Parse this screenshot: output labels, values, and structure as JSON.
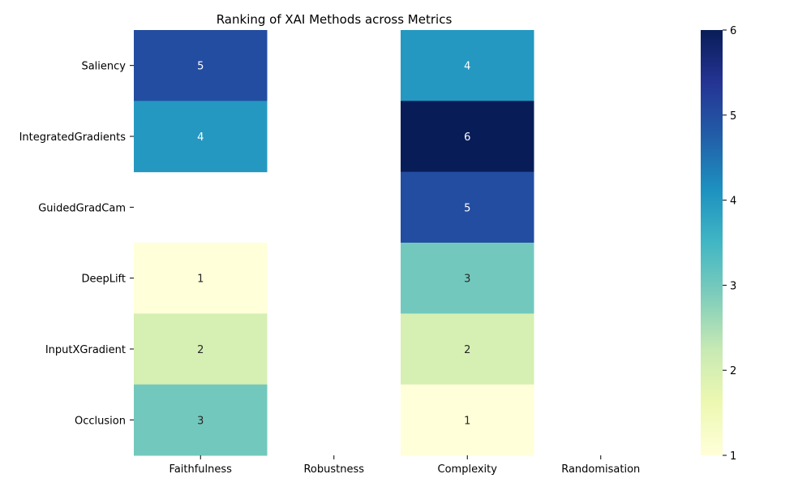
{
  "chart_data": {
    "type": "heatmap",
    "title": "Ranking of XAI Methods across Metrics",
    "rows": [
      "Saliency",
      "IntegratedGradients",
      "GuidedGradCam",
      "DeepLift",
      "InputXGradient",
      "Occlusion"
    ],
    "columns": [
      "Faithfulness",
      "Robustness",
      "Complexity",
      "Randomisation"
    ],
    "values": [
      [
        5,
        null,
        4,
        null
      ],
      [
        4,
        null,
        6,
        null
      ],
      [
        null,
        null,
        5,
        null
      ],
      [
        1,
        null,
        3,
        null
      ],
      [
        2,
        null,
        2,
        null
      ],
      [
        3,
        null,
        1,
        null
      ]
    ],
    "colormap": "YlGnBu",
    "colorbar": {
      "min": 1,
      "max": 6,
      "ticks": [
        "1",
        "2",
        "3",
        "4",
        "5",
        "6"
      ]
    },
    "annotations": true
  }
}
